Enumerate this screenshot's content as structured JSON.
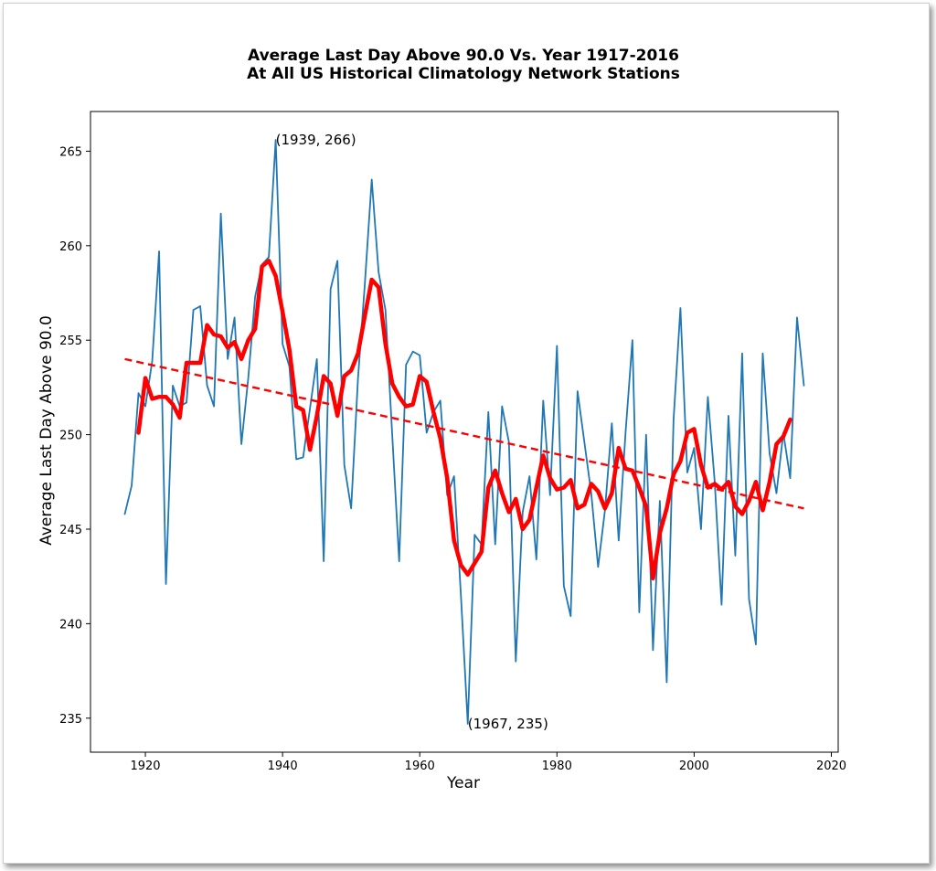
{
  "chart_data": {
    "type": "line",
    "title_line1": "Average Last Day Above 90.0 Vs. Year 1917-2016",
    "title_line2": "At All US Historical Climatology Network Stations",
    "xlabel": "Year",
    "ylabel": "Average Last Day Above 90.0",
    "xlim": [
      1912,
      2021
    ],
    "ylim": [
      233.2,
      267.1
    ],
    "x_ticks": [
      1920,
      1940,
      1960,
      1980,
      2000,
      2020
    ],
    "y_ticks": [
      235,
      240,
      245,
      250,
      255,
      260,
      265
    ],
    "grid": false,
    "annotations": [
      {
        "text": "(1939, 266)",
        "x": 1939,
        "y": 265.6
      },
      {
        "text": "(1967, 235)",
        "x": 1967,
        "y": 234.7
      }
    ],
    "series": [
      {
        "style": "raw",
        "color": "#1f77b4",
        "x": [
          1917,
          1918,
          1919,
          1920,
          1921,
          1922,
          1923,
          1924,
          1925,
          1926,
          1927,
          1928,
          1929,
          1930,
          1931,
          1932,
          1933,
          1934,
          1935,
          1936,
          1937,
          1938,
          1939,
          1940,
          1941,
          1942,
          1943,
          1944,
          1945,
          1946,
          1947,
          1948,
          1949,
          1950,
          1951,
          1952,
          1953,
          1954,
          1955,
          1956,
          1957,
          1958,
          1959,
          1960,
          1961,
          1962,
          1963,
          1964,
          1965,
          1966,
          1967,
          1968,
          1969,
          1970,
          1971,
          1972,
          1973,
          1974,
          1975,
          1976,
          1977,
          1978,
          1979,
          1980,
          1981,
          1982,
          1983,
          1984,
          1985,
          1986,
          1987,
          1988,
          1989,
          1990,
          1991,
          1992,
          1993,
          1994,
          1995,
          1996,
          1997,
          1998,
          1999,
          2000,
          2001,
          2002,
          2003,
          2004,
          2005,
          2006,
          2007,
          2008,
          2009,
          2010,
          2011,
          2012,
          2013,
          2014,
          2015,
          2016
        ],
        "y": [
          245.8,
          247.3,
          252.2,
          251.5,
          253.9,
          259.7,
          242.1,
          252.6,
          251.5,
          251.7,
          256.6,
          256.8,
          252.6,
          251.5,
          261.7,
          254.0,
          256.2,
          249.5,
          253.0,
          257.3,
          259.0,
          259.4,
          265.6,
          254.8,
          253.6,
          248.7,
          248.8,
          251.4,
          254.0,
          243.3,
          257.7,
          259.2,
          248.4,
          246.1,
          253.0,
          258.0,
          263.5,
          258.6,
          256.6,
          249.9,
          243.3,
          253.7,
          254.4,
          254.2,
          250.1,
          251.2,
          251.8,
          246.8,
          247.8,
          241.5,
          234.7,
          244.7,
          244.2,
          251.2,
          244.2,
          251.5,
          249.6,
          238.0,
          245.9,
          247.8,
          243.4,
          251.8,
          246.8,
          254.7,
          242.0,
          240.4,
          252.3,
          249.6,
          246.9,
          243.0,
          246.0,
          250.6,
          244.4,
          250.1,
          255.0,
          240.6,
          250.0,
          238.6,
          246.5,
          236.9,
          250.8,
          256.7,
          248.0,
          249.3,
          245.0,
          252.0,
          247.5,
          241.0,
          251.0,
          243.6,
          254.3,
          241.3,
          238.9,
          254.3,
          249.0,
          246.9,
          250.1,
          247.7,
          256.2,
          252.6
        ]
      },
      {
        "style": "moving_average",
        "color": "#ff0000",
        "x": [
          1919,
          1920,
          1921,
          1922,
          1923,
          1924,
          1925,
          1926,
          1927,
          1928,
          1929,
          1930,
          1931,
          1932,
          1933,
          1934,
          1935,
          1936,
          1937,
          1938,
          1939,
          1940,
          1941,
          1942,
          1943,
          1944,
          1945,
          1946,
          1947,
          1948,
          1949,
          1950,
          1951,
          1952,
          1953,
          1954,
          1955,
          1956,
          1957,
          1958,
          1959,
          1960,
          1961,
          1962,
          1963,
          1964,
          1965,
          1966,
          1967,
          1968,
          1969,
          1970,
          1971,
          1972,
          1973,
          1974,
          1975,
          1976,
          1977,
          1978,
          1979,
          1980,
          1981,
          1982,
          1983,
          1984,
          1985,
          1986,
          1987,
          1988,
          1989,
          1990,
          1991,
          1992,
          1993,
          1994,
          1995,
          1996,
          1997,
          1998,
          1999,
          2000,
          2001,
          2002,
          2003,
          2004,
          2005,
          2006,
          2007,
          2008,
          2009,
          2010,
          2011,
          2012,
          2013,
          2014
        ],
        "y": [
          250.1,
          253.0,
          251.9,
          252.0,
          252.0,
          251.6,
          250.9,
          253.8,
          253.8,
          253.8,
          255.8,
          255.3,
          255.2,
          254.6,
          254.9,
          254.0,
          255.0,
          255.6,
          258.9,
          259.2,
          258.4,
          256.5,
          254.5,
          251.5,
          251.3,
          249.2,
          251.0,
          253.1,
          252.7,
          251.0,
          253.1,
          253.4,
          254.3,
          256.3,
          258.2,
          257.8,
          254.8,
          252.7,
          252.0,
          251.5,
          251.6,
          253.1,
          252.8,
          251.2,
          249.8,
          247.7,
          244.4,
          243.1,
          242.6,
          243.2,
          243.8,
          247.2,
          248.1,
          246.9,
          245.9,
          246.6,
          245.0,
          245.5,
          247.2,
          248.9,
          247.7,
          247.1,
          247.2,
          247.6,
          246.1,
          246.3,
          247.4,
          247.0,
          246.1,
          246.9,
          249.3,
          248.2,
          248.1,
          247.2,
          246.2,
          242.4,
          244.8,
          246.1,
          247.9,
          248.6,
          250.1,
          250.3,
          248.4,
          247.2,
          247.4,
          247.1,
          247.5,
          246.2,
          245.8,
          246.5,
          247.5,
          246.0,
          247.5,
          249.5,
          249.9,
          250.8
        ]
      },
      {
        "style": "trend",
        "color": "#ff0000",
        "x": [
          1917,
          2016
        ],
        "y": [
          254.0,
          246.1
        ]
      }
    ]
  }
}
